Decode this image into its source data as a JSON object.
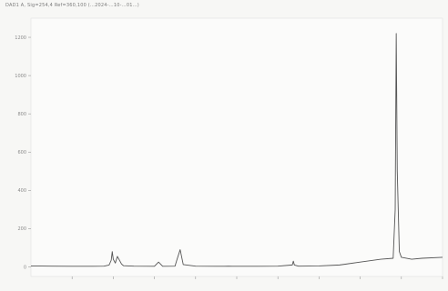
{
  "header": {
    "text": "DAD1 A, Sig=254,4 Ref=360,100 (…2024-…10-…01…)"
  },
  "chart_data": {
    "type": "line",
    "title": "",
    "xlabel": "",
    "ylabel": "",
    "xlim": [
      0,
      20
    ],
    "ylim": [
      -50,
      1300
    ],
    "grid": false,
    "x_ticks": [
      2,
      4,
      6,
      8,
      10,
      12,
      14,
      16,
      18,
      20
    ],
    "x_tick_labels": [
      "",
      "",
      "",
      "",
      "",
      "",
      "",
      "",
      "",
      ""
    ],
    "y_ticks": [
      0,
      200,
      400,
      600,
      800,
      1000,
      1200
    ],
    "y_tick_labels": [
      "0",
      "200",
      "400",
      "600",
      "800",
      "1000",
      "1200"
    ],
    "series": [
      {
        "name": "",
        "color": "#555555",
        "x": [
          0.0,
          1.0,
          2.0,
          3.0,
          3.55,
          3.8,
          3.9,
          3.95,
          4.0,
          4.1,
          4.2,
          4.4,
          4.5,
          5.0,
          6.0,
          6.2,
          6.4,
          7.0,
          7.1,
          7.25,
          7.4,
          8.0,
          9.0,
          9.4,
          9.6,
          9.8,
          10.0,
          11.0,
          12.0,
          12.7,
          12.75,
          12.8,
          13.0,
          14.0,
          15.0,
          16.0,
          17.0,
          17.6,
          17.7,
          17.75,
          17.8,
          17.9,
          18.0,
          18.5,
          19.0,
          20.0
        ],
        "y": [
          5,
          4,
          3,
          3,
          4,
          10,
          35,
          80,
          40,
          20,
          55,
          15,
          6,
          4,
          3,
          25,
          3,
          4,
          40,
          90,
          12,
          4,
          3,
          3,
          4,
          3,
          3,
          3,
          4,
          10,
          30,
          10,
          4,
          5,
          10,
          25,
          40,
          45,
          300,
          1220,
          500,
          80,
          50,
          40,
          45,
          50
        ]
      }
    ],
    "annotations": []
  }
}
